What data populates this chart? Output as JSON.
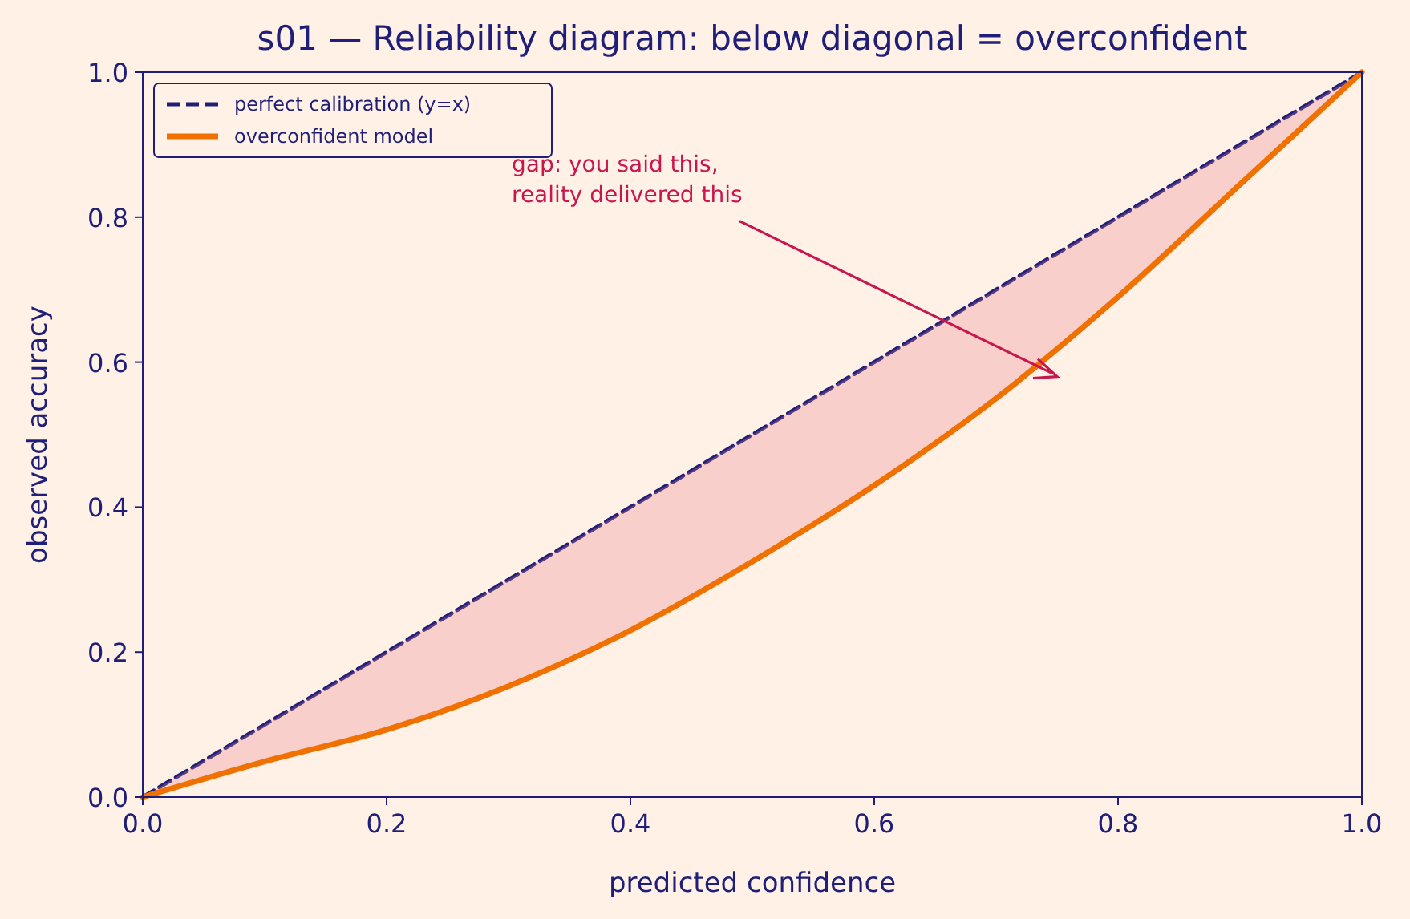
{
  "chart_data": {
    "type": "line",
    "title": "s01 — Reliability diagram: below diagonal = overconfident",
    "xlabel": "predicted confidence",
    "ylabel": "observed accuracy",
    "x": [
      0,
      0.1,
      0.2,
      0.3,
      0.4,
      0.5,
      0.6,
      0.7,
      0.8,
      0.9,
      1.0
    ],
    "series": [
      {
        "name": "perfect calibration (y=x)",
        "color": "#1f1f7a",
        "line_style": "dashed",
        "values": [
          0,
          0.1,
          0.2,
          0.3,
          0.4,
          0.5,
          0.6,
          0.7,
          0.8,
          0.9,
          1.0
        ]
      },
      {
        "name": "overconfident model",
        "color": "#f07000",
        "line_style": "solid",
        "values": [
          0,
          0.049,
          0.093,
          0.153,
          0.23,
          0.325,
          0.43,
          0.55,
          0.69,
          0.845,
          1.0
        ],
        "lower": [
          0,
          0.049,
          0.093,
          0.153,
          0.23,
          0.325,
          0.43,
          0.55,
          0.69,
          0.845,
          1.0
        ],
        "upper": [
          0,
          0.1,
          0.2,
          0.3,
          0.4,
          0.5,
          0.6,
          0.7,
          0.8,
          0.9,
          1.0
        ]
      }
    ],
    "annotations": [
      "gap: you said this,\nreality delivered this"
    ],
    "xlim": [
      0,
      1
    ],
    "ylim": [
      0,
      1
    ],
    "xticks": [
      {
        "value": 0,
        "label": "0.0"
      },
      0.2,
      0.4,
      0.6,
      0.8,
      {
        "value": 1,
        "label": "1.0"
      }
    ],
    "yticks": [
      {
        "value": 0,
        "label": "0.0"
      },
      0.2,
      0.4,
      0.6,
      0.8,
      {
        "value": 1,
        "label": "1.0"
      }
    ],
    "grid": false,
    "legend": "top left",
    "marker": "none"
  }
}
